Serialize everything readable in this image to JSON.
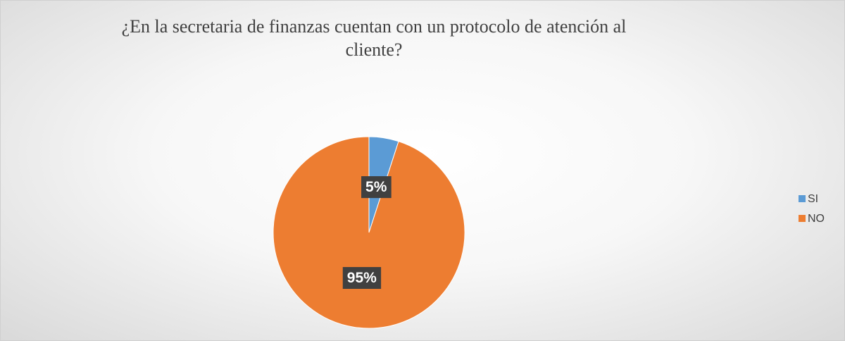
{
  "chart_data": {
    "type": "pie",
    "title": "¿En la secretaria de finanzas cuentan con un protocolo de atención al cliente?",
    "categories": [
      "SI",
      "NO"
    ],
    "values": [
      5,
      95
    ],
    "value_labels": [
      "5%",
      "95%"
    ],
    "colors": [
      "#5b9bd5",
      "#ed7d31"
    ],
    "legend": "right"
  }
}
